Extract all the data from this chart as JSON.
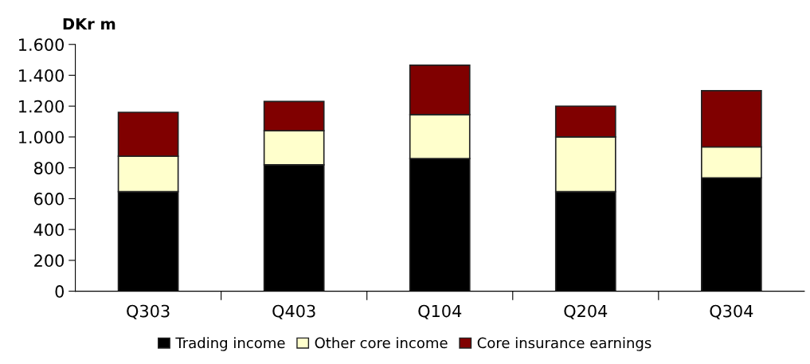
{
  "chart_data": {
    "type": "bar",
    "stacked": true,
    "ylabel": "DKr m",
    "categories": [
      "Q303",
      "Q403",
      "Q104",
      "Q204",
      "Q304"
    ],
    "series": [
      {
        "name": "Trading income",
        "color": "#000000",
        "values": [
          645,
          820,
          860,
          645,
          735
        ]
      },
      {
        "name": "Other core income",
        "color": "#ffffcc",
        "values": [
          230,
          220,
          285,
          355,
          200
        ]
      },
      {
        "name": "Core insurance earnings",
        "color": "#800000",
        "values": [
          285,
          190,
          320,
          200,
          365
        ]
      }
    ],
    "ylim": [
      0,
      1600
    ],
    "yticks": [
      {
        "value": 0,
        "label": "0"
      },
      {
        "value": 200,
        "label": "200"
      },
      {
        "value": 400,
        "label": "400"
      },
      {
        "value": 600,
        "label": "600"
      },
      {
        "value": 800,
        "label": "800"
      },
      {
        "value": 1000,
        "label": "1.000"
      },
      {
        "value": 1200,
        "label": "1.200"
      },
      {
        "value": 1400,
        "label": "1.400"
      },
      {
        "value": 1600,
        "label": "1.600"
      }
    ],
    "grid": false,
    "legend": "bottom"
  }
}
